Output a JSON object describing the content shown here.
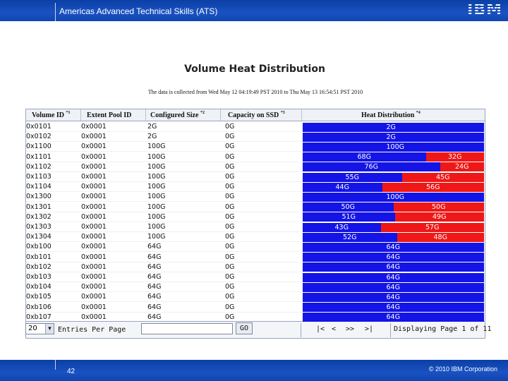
{
  "header": {
    "title": "Americas Advanced Technical Skills (ATS)",
    "logo": "IBM"
  },
  "footer": {
    "page_number": "42",
    "copyright": "© 2010 IBM Corporation"
  },
  "main": {
    "title": "Volume Heat Distribution",
    "subtitle": "The data is collected from Wed May 12 04:19:49 PST 2010 to Thu May 13 16:54:51 PST 2010"
  },
  "table": {
    "columns": [
      {
        "label": "Volume ID",
        "note": "*1"
      },
      {
        "label": "Extent Pool ID",
        "note": ""
      },
      {
        "label": "Configured Size",
        "note": "*2"
      },
      {
        "label": "Capacity on SSD",
        "note": "*3"
      },
      {
        "label": "Heat Distribution",
        "note": "*4"
      }
    ],
    "rows": [
      {
        "volume": "0x0101",
        "pool": "0x0001",
        "size": "2G",
        "ssd": "0G",
        "blue": 1.0,
        "blue_label": "2G",
        "red_label": ""
      },
      {
        "volume": "0x0102",
        "pool": "0x0001",
        "size": "2G",
        "ssd": "0G",
        "blue": 1.0,
        "blue_label": "2G",
        "red_label": ""
      },
      {
        "volume": "0x1100",
        "pool": "0x0001",
        "size": "100G",
        "ssd": "0G",
        "blue": 1.0,
        "blue_label": "100G",
        "red_label": ""
      },
      {
        "volume": "0x1101",
        "pool": "0x0001",
        "size": "100G",
        "ssd": "0G",
        "blue": 0.68,
        "blue_label": "68G",
        "red_label": "32G"
      },
      {
        "volume": "0x1102",
        "pool": "0x0001",
        "size": "100G",
        "ssd": "0G",
        "blue": 0.76,
        "blue_label": "76G",
        "red_label": "24G"
      },
      {
        "volume": "0x1103",
        "pool": "0x0001",
        "size": "100G",
        "ssd": "0G",
        "blue": 0.55,
        "blue_label": "55G",
        "red_label": "45G"
      },
      {
        "volume": "0x1104",
        "pool": "0x0001",
        "size": "100G",
        "ssd": "0G",
        "blue": 0.44,
        "blue_label": "44G",
        "red_label": "56G"
      },
      {
        "volume": "0x1300",
        "pool": "0x0001",
        "size": "100G",
        "ssd": "0G",
        "blue": 1.0,
        "blue_label": "100G",
        "red_label": ""
      },
      {
        "volume": "0x1301",
        "pool": "0x0001",
        "size": "100G",
        "ssd": "0G",
        "blue": 0.5,
        "blue_label": "50G",
        "red_label": "50G"
      },
      {
        "volume": "0x1302",
        "pool": "0x0001",
        "size": "100G",
        "ssd": "0G",
        "blue": 0.51,
        "blue_label": "51G",
        "red_label": "49G"
      },
      {
        "volume": "0x1303",
        "pool": "0x0001",
        "size": "100G",
        "ssd": "0G",
        "blue": 0.43,
        "blue_label": "43G",
        "red_label": "57G"
      },
      {
        "volume": "0x1304",
        "pool": "0x0001",
        "size": "100G",
        "ssd": "0G",
        "blue": 0.52,
        "blue_label": "52G",
        "red_label": "48G"
      },
      {
        "volume": "0xb100",
        "pool": "0x0001",
        "size": "64G",
        "ssd": "0G",
        "blue": 1.0,
        "blue_label": "64G",
        "red_label": ""
      },
      {
        "volume": "0xb101",
        "pool": "0x0001",
        "size": "64G",
        "ssd": "0G",
        "blue": 1.0,
        "blue_label": "64G",
        "red_label": ""
      },
      {
        "volume": "0xb102",
        "pool": "0x0001",
        "size": "64G",
        "ssd": "0G",
        "blue": 1.0,
        "blue_label": "64G",
        "red_label": ""
      },
      {
        "volume": "0xb103",
        "pool": "0x0001",
        "size": "64G",
        "ssd": "0G",
        "blue": 1.0,
        "blue_label": "64G",
        "red_label": ""
      },
      {
        "volume": "0xb104",
        "pool": "0x0001",
        "size": "64G",
        "ssd": "0G",
        "blue": 1.0,
        "blue_label": "64G",
        "red_label": ""
      },
      {
        "volume": "0xb105",
        "pool": "0x0001",
        "size": "64G",
        "ssd": "0G",
        "blue": 1.0,
        "blue_label": "64G",
        "red_label": ""
      },
      {
        "volume": "0xb106",
        "pool": "0x0001",
        "size": "64G",
        "ssd": "0G",
        "blue": 1.0,
        "blue_label": "64G",
        "red_label": ""
      },
      {
        "volume": "0xb107",
        "pool": "0x0001",
        "size": "64G",
        "ssd": "0G",
        "blue": 1.0,
        "blue_label": "64G",
        "red_label": ""
      }
    ]
  },
  "controls": {
    "entries_per_page_value": "20",
    "entries_per_page_label": "Entries Per Page",
    "go_input_value": "",
    "go_label": "GO",
    "pager_first": "|<",
    "pager_prev": "<",
    "pager_next": ">>",
    "pager_last": ">|",
    "page_info": "Displaying Page 1 of 11"
  },
  "colors": {
    "cold": "#1414e6",
    "hot": "#ef1717",
    "brand": "#0b3fa6"
  }
}
